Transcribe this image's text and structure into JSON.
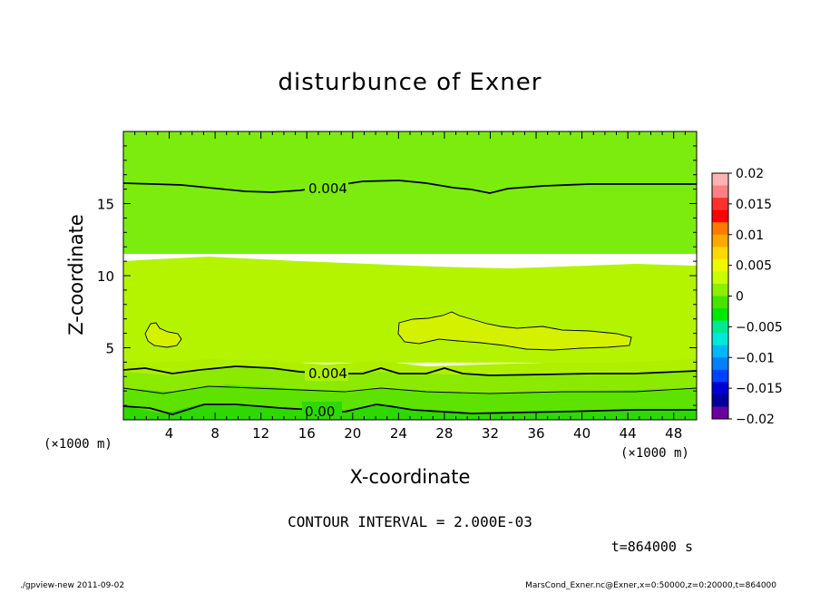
{
  "chart_data": {
    "type": "heatmap",
    "title": "disturbunce of Exner",
    "xlabel": "X-coordinate",
    "ylabel": "Z-coordinate",
    "x_unit": "(×1000 m)",
    "y_unit": "(×1000 m)",
    "xlim": [
      0,
      50
    ],
    "ylim": [
      0,
      20
    ],
    "x_ticks": [
      4,
      8,
      12,
      16,
      20,
      24,
      28,
      32,
      36,
      40,
      44,
      48
    ],
    "y_ticks": [
      5,
      10,
      15
    ],
    "colorbar": {
      "levels": [
        0.02,
        0.015,
        0.01,
        0.005,
        0,
        -0.005,
        -0.01,
        -0.015,
        -0.02
      ],
      "labels": [
        "0.02",
        "0.015",
        "0.01",
        "0.005",
        "0",
        "−0.005",
        "−0.01",
        "−0.015",
        "−0.02"
      ],
      "colors": [
        "#ffb3b3",
        "#ff8080",
        "#ff3030",
        "#ff0000",
        "#ff7a00",
        "#ffa800",
        "#ffd800",
        "#eef800",
        "#c8ff00",
        "#8cf000",
        "#46e400",
        "#00e800",
        "#00e890",
        "#00e8d8",
        "#00b8f8",
        "#0080ff",
        "#0040ff",
        "#0000d0",
        "#00009a",
        "#6a00a0"
      ]
    },
    "contour_labels": [
      "0.004",
      "0.004",
      "0.00"
    ],
    "contour_interval_text": "CONTOUR INTERVAL = 2.000E-03"
  },
  "time_text": "t=864000 s",
  "footer": {
    "left": "./gpview-new   2011-09-02",
    "right": "MarsCond_Exner.nc@Exner,x=0:50000,z=0:20000,t=864000"
  }
}
